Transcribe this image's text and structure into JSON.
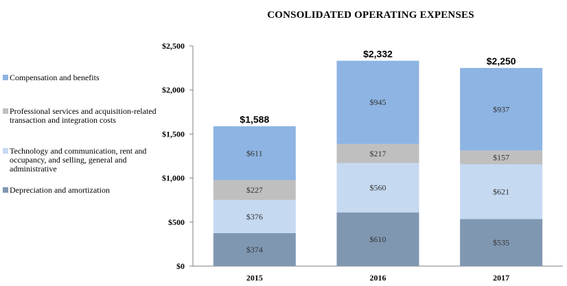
{
  "chart_data": {
    "type": "bar",
    "stacked": true,
    "title": "CONSOLIDATED OPERATING EXPENSES",
    "categories": [
      "2015",
      "2016",
      "2017"
    ],
    "series": [
      {
        "name": "Depreciation and amortization",
        "values": [
          374,
          610,
          535
        ],
        "labels": [
          "$374",
          "$610",
          "$535"
        ],
        "color": "#8097b1"
      },
      {
        "name": "Technology and communication, rent and occupancy, and selling, general and administrative",
        "values": [
          376,
          560,
          621
        ],
        "labels": [
          "$376",
          "$560",
          "$621"
        ],
        "color": "#c5d9f1"
      },
      {
        "name": "Professional services and acquisition-related transaction and integration costs",
        "values": [
          227,
          217,
          157
        ],
        "labels": [
          "$227",
          "$217",
          "$157"
        ],
        "color": "#bfbfbf"
      },
      {
        "name": "Compensation and benefits",
        "values": [
          611,
          945,
          937
        ],
        "labels": [
          "$611",
          "$945",
          "$937"
        ],
        "color": "#8db4e2"
      }
    ],
    "totals": [
      1588,
      2332,
      2250
    ],
    "total_labels": [
      "$1,588",
      "$2,332",
      "$2,250"
    ],
    "ylim": [
      0,
      2500
    ],
    "yticks": [
      0,
      500,
      1000,
      1500,
      2000,
      2500
    ],
    "ytick_labels": [
      "$0",
      "$500",
      "$1,000",
      "$1,500",
      "$2,000",
      "$2,500"
    ],
    "xlabel": "",
    "ylabel": "",
    "grid": false,
    "legend_position": "left"
  },
  "legend": {
    "items": [
      {
        "label": "Compensation and benefits",
        "color": "#8db4e2"
      },
      {
        "label": "Professional services and acquisition-related transaction and integration costs",
        "color": "#bfbfbf"
      },
      {
        "label": "Technology and communication, rent and occupancy, and selling, general and administrative",
        "color": "#c5d9f1"
      },
      {
        "label": "Depreciation and amortization",
        "color": "#8097b1"
      }
    ]
  }
}
